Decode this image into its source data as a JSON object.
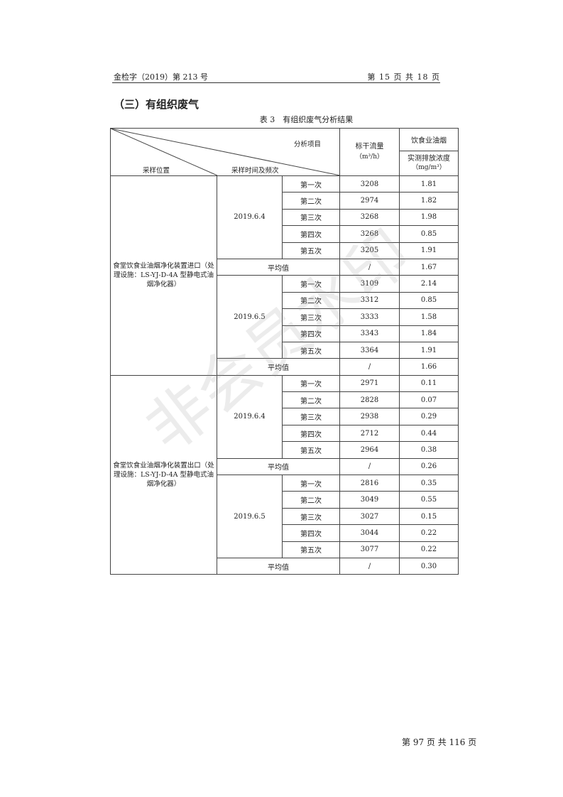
{
  "header": {
    "doc_number": "金检字（2019）第 213 号",
    "page_of": "第 15 页 共 18 页"
  },
  "section_title": "（三）有组织废气",
  "table_caption": "表 3　有组织废气分析结果",
  "table": {
    "header": {
      "analysis_item": "分析项目",
      "sampling_location": "采样位置",
      "sampling_time": "采样时间及频次",
      "flow": "标干流量",
      "flow_unit": "（m³/h）",
      "pollutant": "饮食业油烟",
      "concentration": "实测排放浓度",
      "concentration_unit": "（mg/m³）"
    },
    "groups": [
      {
        "location": "食堂饮食业油烟净化装置进口（处理设施：LS-YJ-D-4A 型静电式油烟净化器）",
        "days": [
          {
            "date": "2019.6.4",
            "rows": [
              [
                "第一次",
                "3208",
                "1.81"
              ],
              [
                "第二次",
                "2974",
                "1.82"
              ],
              [
                "第三次",
                "3268",
                "1.98"
              ],
              [
                "第四次",
                "3268",
                "0.85"
              ],
              [
                "第五次",
                "3205",
                "1.91"
              ]
            ],
            "avg_label": "平均值",
            "avg_flow": "/",
            "avg_conc": "1.67"
          },
          {
            "date": "2019.6.5",
            "rows": [
              [
                "第一次",
                "3109",
                "2.14"
              ],
              [
                "第二次",
                "3312",
                "0.85"
              ],
              [
                "第三次",
                "3333",
                "1.58"
              ],
              [
                "第四次",
                "3343",
                "1.84"
              ],
              [
                "第五次",
                "3364",
                "1.91"
              ]
            ],
            "avg_label": "平均值",
            "avg_flow": "/",
            "avg_conc": "1.66"
          }
        ]
      },
      {
        "location": "食堂饮食业油烟净化装置出口（处理设施：LS-YJ-D-4A 型静电式油烟净化器）",
        "days": [
          {
            "date": "2019.6.4",
            "rows": [
              [
                "第一次",
                "2971",
                "0.11"
              ],
              [
                "第二次",
                "2828",
                "0.07"
              ],
              [
                "第三次",
                "2938",
                "0.29"
              ],
              [
                "第四次",
                "2712",
                "0.44"
              ],
              [
                "第五次",
                "2964",
                "0.38"
              ]
            ],
            "avg_label": "平均值",
            "avg_flow": "/",
            "avg_conc": "0.26"
          },
          {
            "date": "2019.6.5",
            "rows": [
              [
                "第一次",
                "2816",
                "0.35"
              ],
              [
                "第二次",
                "3049",
                "0.55"
              ],
              [
                "第三次",
                "3027",
                "0.15"
              ],
              [
                "第四次",
                "3044",
                "0.22"
              ],
              [
                "第五次",
                "3077",
                "0.22"
              ]
            ],
            "avg_label": "平均值",
            "avg_flow": "/",
            "avg_conc": "0.30"
          }
        ]
      }
    ]
  },
  "footer": {
    "page_of": "第 97 页 共 116 页"
  },
  "watermark": "非会员水印"
}
